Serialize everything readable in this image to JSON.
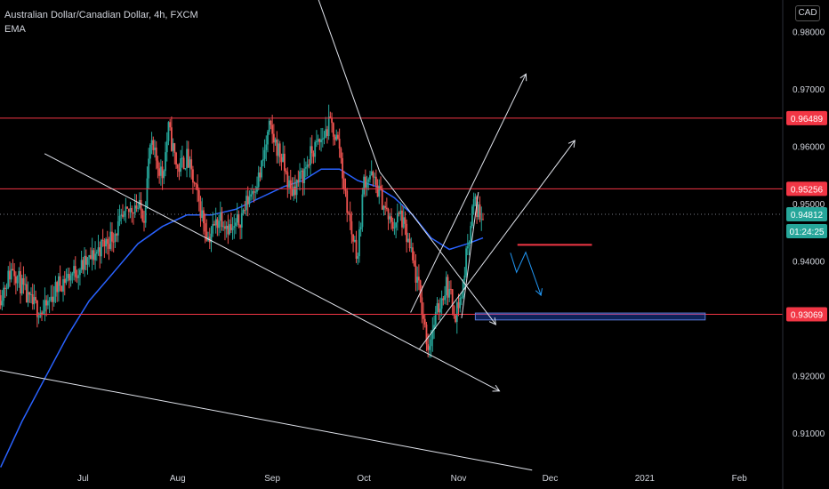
{
  "header": {
    "title": "Australian Dollar/Canadian Dollar, 4h, FXCM",
    "indicator": "EMA"
  },
  "currency": "CAD",
  "chart_data": {
    "type": "candlestick",
    "symbol": "AUDCAD",
    "timeframe": "4h",
    "y_ticks": [
      "0.98000",
      "0.97000",
      "0.96000",
      "0.95000",
      "0.94000",
      "0.92000",
      "0.91000"
    ],
    "ylim": [
      0.903,
      0.9855
    ],
    "x_ticks": [
      {
        "label": "Jul",
        "day": 0
      },
      {
        "label": "Aug",
        "day": 31
      },
      {
        "label": "Sep",
        "day": 62
      },
      {
        "label": "Oct",
        "day": 92
      },
      {
        "label": "Nov",
        "day": 123
      },
      {
        "label": "Dec",
        "day": 153
      },
      {
        "label": "2021",
        "day": 184
      },
      {
        "label": "Feb",
        "day": 215
      }
    ],
    "xlim_days": [
      -27.2,
      229.2
    ],
    "price_levels": [
      {
        "label": "0.96489",
        "value": 0.96489,
        "color": "#f23645"
      },
      {
        "label": "0.95256",
        "value": 0.95256,
        "color": "#f23645"
      },
      {
        "label": "0.93069",
        "value": 0.93069,
        "color": "#f23645"
      }
    ],
    "current_price": {
      "label": "0.94812",
      "value": 0.94812,
      "color": "#26a69a"
    },
    "countdown": {
      "label": "01:24:25",
      "color": "#26a69a"
    },
    "ema_color": "#2962ff",
    "candle_up_color": "#26a69a",
    "candle_down_color": "#ef5350",
    "price_path": [
      [
        -27,
        0.934
      ],
      [
        -23,
        0.939
      ],
      [
        -18,
        0.933
      ],
      [
        -13,
        0.931
      ],
      [
        -8,
        0.936
      ],
      [
        -3,
        0.938
      ],
      [
        2,
        0.94
      ],
      [
        5,
        0.942
      ],
      [
        9,
        0.944
      ],
      [
        13,
        0.947
      ],
      [
        17,
        0.95
      ],
      [
        20,
        0.948
      ],
      [
        22,
        0.96
      ],
      [
        26,
        0.955
      ],
      [
        28,
        0.963
      ],
      [
        31,
        0.956
      ],
      [
        34,
        0.958
      ],
      [
        38,
        0.95
      ],
      [
        41,
        0.944
      ],
      [
        45,
        0.948
      ],
      [
        49,
        0.945
      ],
      [
        52,
        0.948
      ],
      [
        55,
        0.952
      ],
      [
        58,
        0.955
      ],
      [
        61,
        0.963
      ],
      [
        65,
        0.958
      ],
      [
        68,
        0.952
      ],
      [
        72,
        0.955
      ],
      [
        75,
        0.959
      ],
      [
        78,
        0.961
      ],
      [
        81,
        0.964
      ],
      [
        84,
        0.96
      ],
      [
        86,
        0.951
      ],
      [
        88,
        0.945
      ],
      [
        90,
        0.941
      ],
      [
        92,
        0.954
      ],
      [
        94,
        0.955
      ],
      [
        97,
        0.952
      ],
      [
        101,
        0.946
      ],
      [
        104,
        0.948
      ],
      [
        107,
        0.942
      ],
      [
        110,
        0.935
      ],
      [
        113,
        0.925
      ],
      [
        116,
        0.931
      ],
      [
        119,
        0.936
      ],
      [
        122,
        0.931
      ],
      [
        124,
        0.934
      ],
      [
        126,
        0.943
      ],
      [
        128,
        0.9505
      ],
      [
        129,
        0.949
      ],
      [
        131,
        0.948
      ]
    ],
    "ema_path": [
      [
        -27,
        0.904
      ],
      [
        -20,
        0.912
      ],
      [
        -13,
        0.919
      ],
      [
        -5,
        0.927
      ],
      [
        2,
        0.933
      ],
      [
        10,
        0.938
      ],
      [
        18,
        0.943
      ],
      [
        26,
        0.946
      ],
      [
        34,
        0.948
      ],
      [
        42,
        0.948
      ],
      [
        50,
        0.949
      ],
      [
        58,
        0.951
      ],
      [
        66,
        0.953
      ],
      [
        72,
        0.954
      ],
      [
        78,
        0.956
      ],
      [
        84,
        0.956
      ],
      [
        90,
        0.954
      ],
      [
        96,
        0.953
      ],
      [
        102,
        0.951
      ],
      [
        108,
        0.948
      ],
      [
        114,
        0.944
      ],
      [
        120,
        0.942
      ],
      [
        126,
        0.943
      ],
      [
        131,
        0.944
      ]
    ],
    "drawings": {
      "descending_channel_top": [
        [
          70.5,
          0.9955
        ],
        [
          97.2,
          0.9555
        ]
      ],
      "descending_channel_top_ext": [
        [
          97.2,
          0.9555
        ],
        [
          135.2,
          0.9289
        ]
      ],
      "descending_channel_bottom": [
        [
          -12.6,
          0.9587
        ],
        [
          136.4,
          0.9173
        ]
      ],
      "long_downtrend": [
        [
          -27.2,
          0.9209
        ],
        [
          147.1,
          0.9035
        ]
      ],
      "ascending_channel_bottom": [
        [
          110,
          0.9245
        ],
        [
          161.1,
          0.961
        ]
      ],
      "ascending_channel_top": [
        [
          107.3,
          0.931
        ],
        [
          145.1,
          0.9726
        ]
      ],
      "steep_trend": [
        [
          124,
          0.93
        ],
        [
          129.5,
          0.952
        ]
      ],
      "target_level": [
        [
          142.3,
          0.9428
        ],
        [
          166.7,
          0.9428
        ]
      ],
      "projected_path": [
        [
          140,
          0.9414
        ],
        [
          142,
          0.938
        ],
        [
          145,
          0.9415
        ],
        [
          150,
          0.934
        ]
      ],
      "demand_zone": {
        "x": [
          128.5,
          203.8
        ],
        "y": [
          0.9297,
          0.9309
        ]
      }
    }
  }
}
